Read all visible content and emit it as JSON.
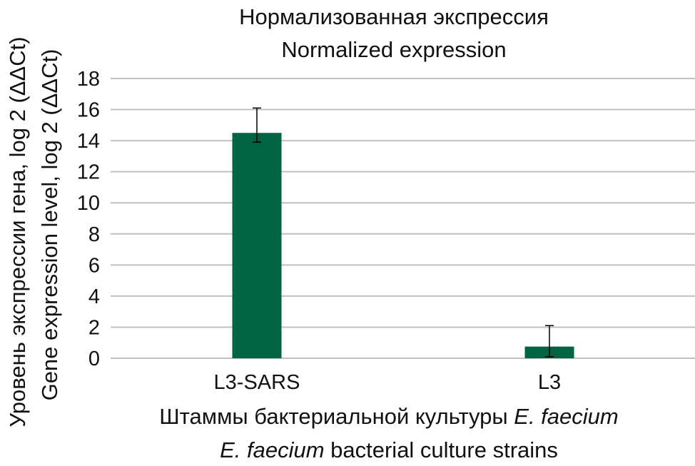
{
  "chart_data": {
    "type": "bar",
    "title_lines": [
      "Нормализованная экспрессия",
      "Normalized expression"
    ],
    "ylabel_lines": [
      "Уровень экспрессии гена, log 2 (ΔΔCt)",
      "Gene expression level, log 2 (ΔΔCt)"
    ],
    "xlabel_lines": [
      {
        "plain": "Штаммы бактериальной культуры ",
        "italic": "E. faecium",
        "after": ""
      },
      {
        "plain": "",
        "italic": "E. faecium",
        "after": " bacterial culture strains"
      }
    ],
    "categories": [
      "L3-SARS",
      "L3"
    ],
    "values": [
      14.5,
      0.75
    ],
    "error_low": [
      13.9,
      0.1
    ],
    "error_high": [
      16.1,
      2.1
    ],
    "ylim": [
      0,
      18
    ],
    "yticks": [
      0,
      2,
      4,
      6,
      8,
      10,
      12,
      14,
      16,
      18
    ],
    "grid": true,
    "legend": "none",
    "bar_color": "#006341",
    "grid_color": "#c0c0c0"
  }
}
